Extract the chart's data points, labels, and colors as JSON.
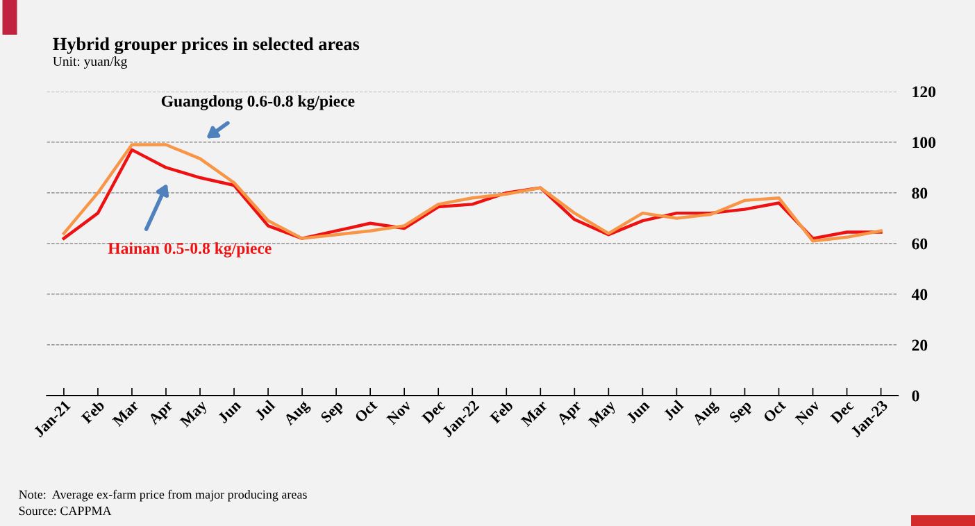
{
  "chart_data": {
    "type": "line",
    "title": "Hybrid grouper prices in selected areas",
    "subtitle": "Unit: yuan/kg",
    "categories": [
      "Jan-21",
      "Feb",
      "Mar",
      "Apr",
      "May",
      "Jun",
      "Jul",
      "Aug",
      "Sep",
      "Oct",
      "Nov",
      "Dec",
      "Jan-22",
      "Feb",
      "Mar",
      "Apr",
      "May",
      "Jun",
      "Jul",
      "Aug",
      "Sep",
      "Oct",
      "Nov",
      "Dec",
      "Jan-23"
    ],
    "series": [
      {
        "name": "Hainan 0.5-0.8 kg/piece",
        "color": "#ee1111",
        "values": [
          62,
          72,
          97,
          90,
          86,
          83,
          67,
          62,
          65,
          68,
          66,
          74.5,
          75.5,
          80,
          82,
          69.5,
          63.5,
          69,
          72,
          72,
          73.5,
          76,
          62,
          64.5,
          64.5
        ]
      },
      {
        "name": "Guangdong 0.6-0.8 kg/piece",
        "color": "#f79646",
        "values": [
          64,
          80,
          99,
          99,
          93.5,
          84,
          69,
          62,
          63.5,
          65,
          67,
          75.5,
          78,
          79.5,
          82,
          72,
          64,
          72,
          70,
          71.5,
          77,
          78,
          61,
          62.5,
          65
        ]
      }
    ],
    "ylim": [
      0,
      120
    ],
    "yticks": [
      0,
      20,
      40,
      60,
      80,
      100,
      120
    ],
    "grid": "y",
    "legend": false,
    "marker": "none",
    "line_style": "solid",
    "annotations": [
      "Note:  Average ex-farm price from major producing areas",
      "Source: CAPPMA"
    ]
  }
}
